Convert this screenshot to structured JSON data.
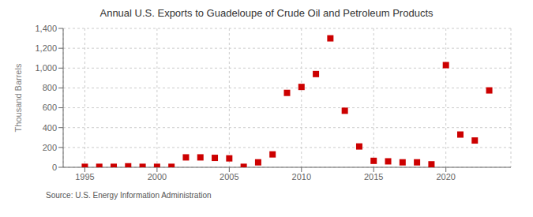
{
  "chart_data": {
    "type": "scatter",
    "title": "Annual U.S. Exports to Guadeloupe of Crude Oil and Petroleum Products",
    "ylabel": "Thousand Barrels",
    "source": "Source: U.S. Energy Information Administration",
    "x": [
      1995,
      1996,
      1997,
      1998,
      1999,
      2000,
      2001,
      2002,
      2003,
      2004,
      2005,
      2006,
      2007,
      2008,
      2009,
      2010,
      2011,
      2012,
      2013,
      2014,
      2015,
      2016,
      2017,
      2018,
      2019,
      2020,
      2021,
      2022,
      2023
    ],
    "values": [
      5,
      5,
      5,
      10,
      5,
      5,
      5,
      100,
      100,
      95,
      90,
      5,
      50,
      130,
      750,
      810,
      940,
      1300,
      570,
      210,
      65,
      60,
      50,
      50,
      30,
      1030,
      330,
      270,
      775
    ],
    "color": "#cc0000",
    "marker": "square",
    "xlim": [
      1993.5,
      2024.5
    ],
    "xticks": [
      1995,
      2000,
      2005,
      2010,
      2015,
      2020
    ],
    "ylim": [
      0,
      1400
    ],
    "yticks": [
      0,
      200,
      400,
      600,
      800,
      {
        "value": 1000,
        "label": "1,000"
      },
      {
        "value": 1200,
        "label": "1,200"
      },
      {
        "value": 1400,
        "label": "1,400"
      }
    ],
    "grid": true
  }
}
